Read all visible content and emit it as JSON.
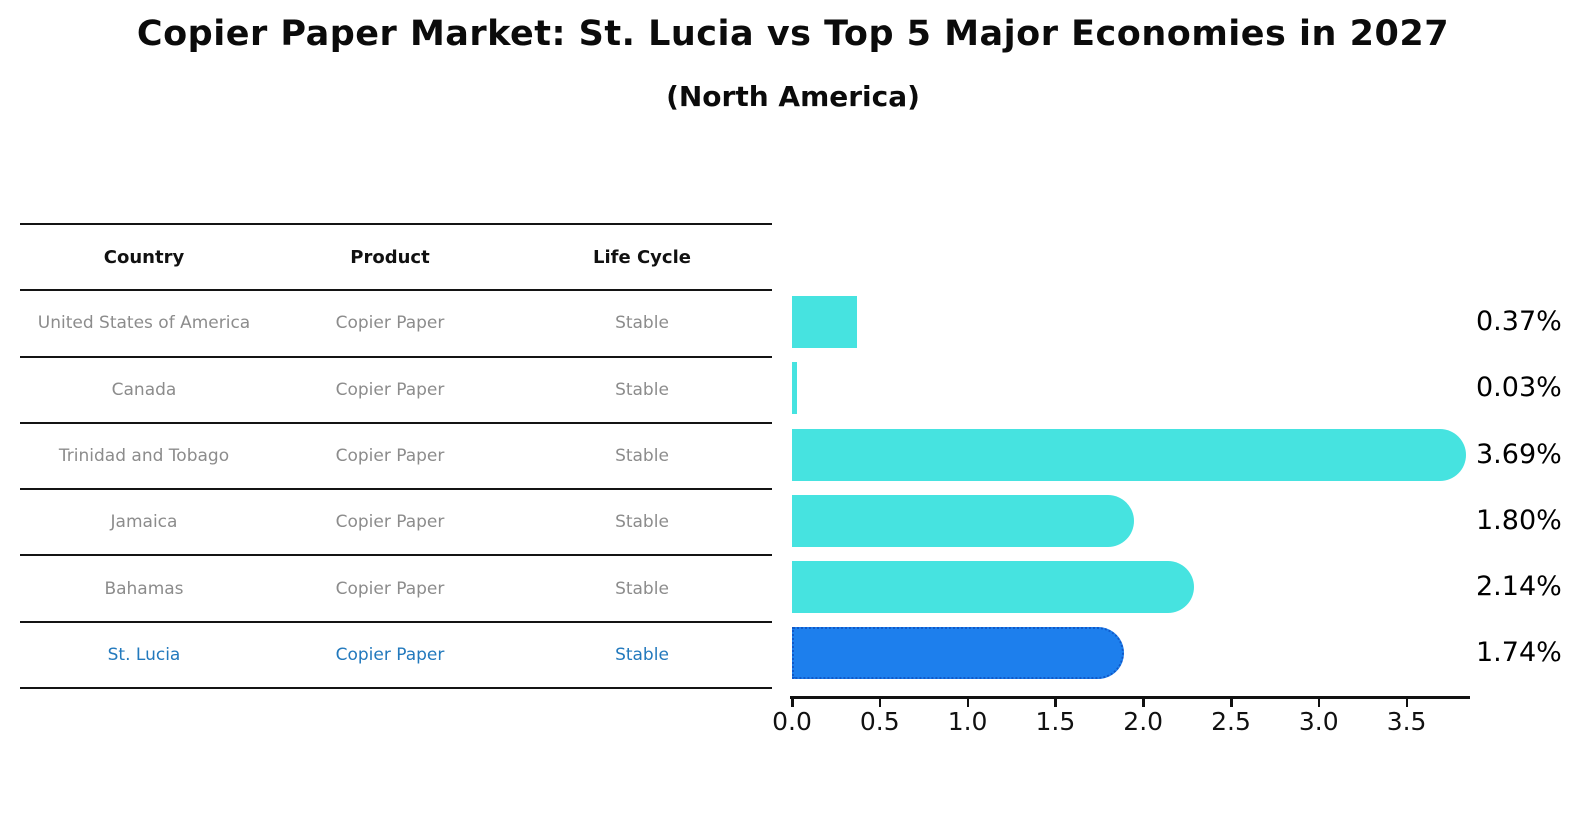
{
  "title": "Copier Paper Market: St. Lucia vs Top 5 Major Economies in 2027",
  "subtitle": "(North America)",
  "table": {
    "headers": [
      "Country",
      "Product",
      "Life Cycle"
    ],
    "rows": [
      {
        "country": "United States of America",
        "product": "Copier Paper",
        "life_cycle": "Stable",
        "highlight": false
      },
      {
        "country": "Canada",
        "product": "Copier Paper",
        "life_cycle": "Stable",
        "highlight": false
      },
      {
        "country": "Trinidad and Tobago",
        "product": "Copier Paper",
        "life_cycle": "Stable",
        "highlight": false
      },
      {
        "country": "Jamaica",
        "product": "Copier Paper",
        "life_cycle": "Stable",
        "highlight": false
      },
      {
        "country": "Bahamas",
        "product": "Copier Paper",
        "life_cycle": "Stable",
        "highlight": false
      },
      {
        "country": "St. Lucia",
        "product": "Copier Paper",
        "life_cycle": "Stable",
        "highlight": true
      }
    ]
  },
  "chart_data": {
    "type": "bar",
    "orientation": "horizontal",
    "title": "Copier Paper Market: St. Lucia vs Top 5 Major Economies in 2027 (North America)",
    "categories": [
      "United States of America",
      "Canada",
      "Trinidad and Tobago",
      "Jamaica",
      "Bahamas",
      "St. Lucia"
    ],
    "values": [
      0.37,
      0.03,
      3.69,
      1.8,
      2.14,
      1.74
    ],
    "value_labels": [
      "0.37%",
      "0.03%",
      "3.69%",
      "1.80%",
      "2.14%",
      "1.74%"
    ],
    "x_ticks": [
      "0.0",
      "0.5",
      "1.0",
      "1.5",
      "2.0",
      "2.5",
      "3.0",
      "3.5"
    ],
    "xlim": [
      0.0,
      3.86
    ],
    "xlabel": "",
    "ylabel": "",
    "grid": false,
    "legend": false,
    "bar_color": "#46E3E0",
    "highlight_index": 5,
    "highlight_color": "#1D7FED",
    "highlight_border_color": "#1059C9"
  },
  "colors": {
    "title_text": "#0b0b0b",
    "row_text": "#8c8c8c",
    "highlight_text": "#2279BD",
    "table_line": "#141414",
    "value_label_text": "#000000"
  }
}
